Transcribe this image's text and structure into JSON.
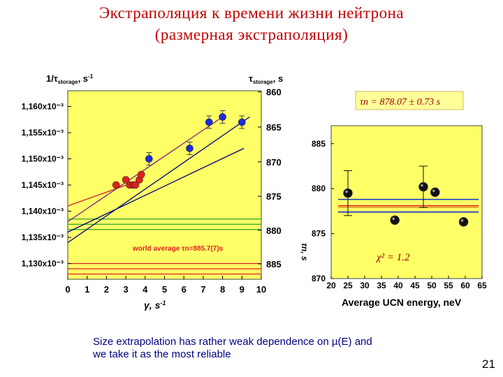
{
  "slide": {
    "title_line1": "Экстраполяция к времени жизни нейтрона",
    "title_line2": "(размерная экстраполяция)",
    "caption_line1": "Size extrapolation has rather weak dependence on µ(E) and",
    "caption_line2": "we take it as the most reliable",
    "page_number": "21"
  },
  "chart_data": [
    {
      "type": "scatter",
      "xlabel": "γ, s⁻¹",
      "ylabel": "1/τstorage, s⁻¹",
      "y2label": "τstorage, s",
      "xlim": [
        0,
        10
      ],
      "ylim": [
        0.001127,
        0.001163
      ],
      "x_ticks": [
        "0",
        "1",
        "2",
        "3",
        "4",
        "5",
        "6",
        "7",
        "8",
        "9",
        "10"
      ],
      "y_ticks": [
        "1,130x10⁻³",
        "1,135x10⁻³",
        "1,140x10⁻³",
        "1,145x10⁻³",
        "1,150x10⁻³",
        "1,155x10⁻³",
        "1,160x10⁻³"
      ],
      "y2_ticks": [
        "860",
        "865",
        "870",
        "875",
        "880",
        "885"
      ],
      "annotation": "world average τn=885.7(7)s",
      "background": "#ffff66",
      "series": [
        {
          "color": "#1c2bd6",
          "points": [
            [
              4.2,
              0.00115
            ],
            [
              6.3,
              0.001152
            ],
            [
              7.3,
              0.001157
            ],
            [
              8.0,
              0.001158
            ],
            [
              9.0,
              0.001157
            ]
          ]
        },
        {
          "color": "#e0201b",
          "points": [
            [
              2.5,
              0.001145
            ],
            [
              3.0,
              0.001146
            ],
            [
              3.2,
              0.001145
            ],
            [
              3.4,
              0.001145
            ],
            [
              3.5,
              0.001145
            ],
            [
              3.7,
              0.001146
            ],
            [
              3.8,
              0.001147
            ]
          ]
        }
      ],
      "fit_lines": [
        {
          "color": "#000080",
          "from": [
            0,
            0.001134
          ],
          "to": [
            9.4,
            0.001158
          ]
        },
        {
          "color": "#000080",
          "from": [
            0,
            0.001136
          ],
          "to": [
            9.1,
            0.001152
          ]
        },
        {
          "color": "#d02030",
          "from": [
            0,
            0.001141
          ],
          "to": [
            3.8,
            0.001146
          ]
        },
        {
          "color": "#802080",
          "from": [
            0,
            0.001138
          ],
          "to": [
            8.0,
            0.001158
          ]
        }
      ],
      "world_average_bands": [
        {
          "color": "#2aa02a",
          "y": [
            0.0011385,
            0.0011375,
            0.0011365
          ]
        },
        {
          "color": "#e02020",
          "y": [
            0.00113,
            0.001129,
            0.001128
          ]
        }
      ]
    },
    {
      "type": "scatter",
      "xlabel": "Average UCN energy, neV",
      "ylabel": "τn, s",
      "xlim": [
        20,
        65
      ],
      "ylim": [
        870,
        887
      ],
      "x_ticks": [
        "20",
        "25",
        "30",
        "35",
        "40",
        "45",
        "50",
        "55",
        "60",
        "65"
      ],
      "y_ticks": [
        "870",
        "875",
        "880",
        "885"
      ],
      "fit_label": "τn = 878.07 ± 0.73 s",
      "chi2_label": "χ² = 1.2",
      "background": "#ffff66",
      "points": [
        {
          "x": 25,
          "y": 879.5,
          "err": 2.5
        },
        {
          "x": 39,
          "y": 876.5,
          "err": 0
        },
        {
          "x": 47.5,
          "y": 880.2,
          "err": 2.3
        },
        {
          "x": 51,
          "y": 879.6,
          "err": 0
        },
        {
          "x": 59.5,
          "y": 876.3,
          "err": 0
        }
      ],
      "lines": [
        {
          "color": "#1030d0",
          "y": 878.8
        },
        {
          "color": "#e02020",
          "y": 878.1
        },
        {
          "color": "#1030d0",
          "y": 877.4
        },
        {
          "color": "#e0a020",
          "y": 877.9
        }
      ]
    }
  ]
}
